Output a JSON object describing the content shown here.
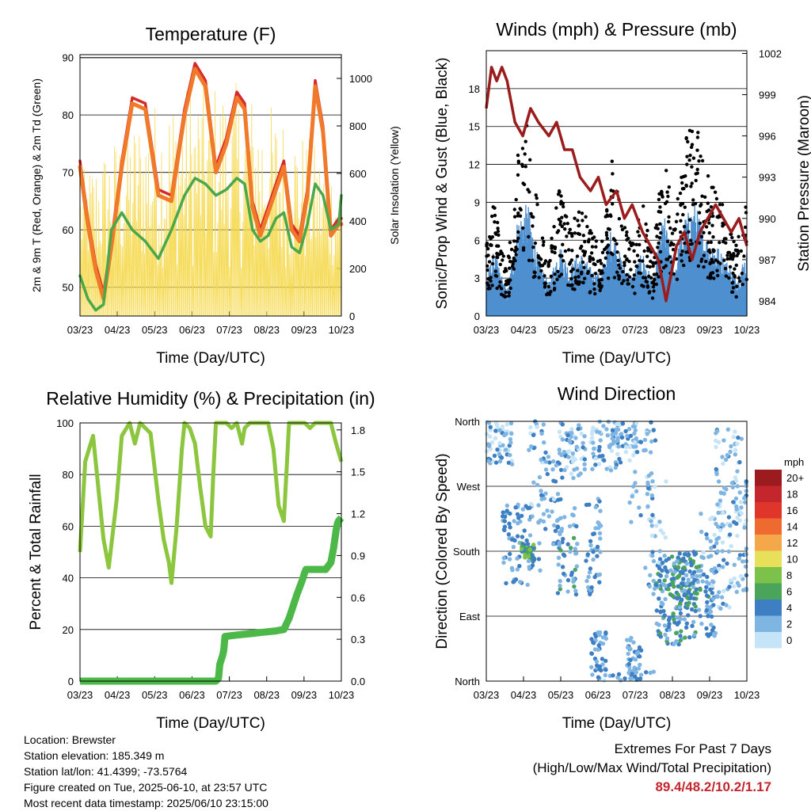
{
  "colors": {
    "temp2m": "#d42a2a",
    "temp9m": "#f07a2a",
    "dewpoint": "#4aa84a",
    "solar": "#f5d84a",
    "wind": "#4d8fcf",
    "gust": "#000000",
    "pressure": "#9b1c1c",
    "rh": "#8cc63e",
    "rain": "#4cb848"
  },
  "chart_data": [
    {
      "id": "temperature",
      "type": "line",
      "title": "Temperature (F)",
      "xlabel": "Time (Day/UTC)",
      "ylabel": "2m & 9m T (Red, Orange) & 2m Td (Green)",
      "y2label": "Solar Insolation (Yellow)",
      "xticks": [
        "03/23",
        "04/23",
        "05/23",
        "06/23",
        "07/23",
        "08/23",
        "09/23",
        "10/23"
      ],
      "yticks": [
        "50",
        "60",
        "70",
        "80",
        "90"
      ],
      "y2ticks": [
        "0",
        "200",
        "400",
        "600",
        "800",
        "1000"
      ],
      "ylim": [
        45,
        90.5
      ],
      "y2lim": [
        0,
        1100
      ],
      "grid": true,
      "series": [
        {
          "key": "temp2m",
          "x": [
            0,
            0.3,
            0.6,
            0.9,
            1.2,
            1.6,
            2,
            2.5,
            3,
            3.5,
            4,
            4.4,
            4.8,
            5.2,
            5.6,
            6,
            6.3,
            6.6,
            6.9,
            7.2,
            7.5,
            7.8,
            8.1,
            8.4,
            8.7,
            9,
            9.3,
            9.6,
            9.9,
            10
          ],
          "y": [
            72,
            62,
            54,
            49,
            58,
            72,
            83,
            82,
            67,
            66,
            81,
            89,
            86,
            71,
            76,
            84,
            82,
            65,
            60,
            64,
            68,
            72,
            61,
            59,
            67,
            86,
            78,
            60,
            62,
            62
          ]
        },
        {
          "key": "temp9m",
          "x": [
            0,
            0.3,
            0.6,
            0.9,
            1.2,
            1.6,
            2,
            2.5,
            3,
            3.5,
            4,
            4.4,
            4.8,
            5.2,
            5.6,
            6,
            6.3,
            6.6,
            6.9,
            7.2,
            7.5,
            7.8,
            8.1,
            8.4,
            8.7,
            9,
            9.3,
            9.6,
            9.9,
            10
          ],
          "y": [
            71,
            61,
            53,
            48,
            57,
            71,
            82,
            81,
            66,
            65,
            80,
            88,
            85,
            70,
            75,
            83,
            81,
            64,
            59,
            63,
            67,
            71,
            60,
            58,
            66,
            85,
            77,
            59,
            61,
            61
          ]
        },
        {
          "key": "dewpoint",
          "x": [
            0,
            0.3,
            0.6,
            0.9,
            1.2,
            1.6,
            2,
            2.5,
            3,
            3.5,
            4,
            4.4,
            4.8,
            5.2,
            5.6,
            6,
            6.3,
            6.6,
            6.9,
            7.2,
            7.5,
            7.8,
            8.1,
            8.4,
            8.7,
            9,
            9.3,
            9.6,
            9.9,
            10
          ],
          "y": [
            52,
            48,
            46,
            47,
            60,
            63,
            60,
            58,
            55,
            60,
            66,
            69,
            68,
            66,
            67,
            69,
            68,
            60,
            58,
            59,
            62,
            63,
            57,
            56,
            61,
            68,
            66,
            60,
            61,
            66
          ]
        }
      ]
    },
    {
      "id": "winds",
      "type": "scatter",
      "title": "Winds (mph) & Pressure (mb)",
      "xlabel": "Time (Day/UTC)",
      "ylabel": "Sonic/Prop Wind & Gust (Blue, Black)",
      "y2label": "Station Pressure (Maroon)",
      "xticks": [
        "03/23",
        "04/23",
        "05/23",
        "06/23",
        "07/23",
        "08/23",
        "09/23",
        "10/23"
      ],
      "yticks": [
        "0",
        "3",
        "6",
        "9",
        "12",
        "15",
        "18"
      ],
      "y2ticks": [
        "984",
        "987",
        "990",
        "993",
        "996",
        "999",
        "1002"
      ],
      "ylim": [
        0,
        21
      ],
      "y2lim": [
        982.9,
        1002.2
      ],
      "grid": true,
      "series": [
        {
          "key": "pressure",
          "x": [
            0,
            0.2,
            0.4,
            0.6,
            0.8,
            1.1,
            1.4,
            1.7,
            2,
            2.4,
            2.7,
            3,
            3.3,
            3.6,
            4,
            4.3,
            4.6,
            5,
            5.3,
            5.6,
            6,
            6.3,
            6.6,
            6.9,
            7.1,
            7.3,
            7.6,
            7.9,
            8.2,
            8.5,
            8.8,
            9.1,
            9.4,
            9.7,
            10
          ],
          "y": [
            998,
            1001,
            1000,
            1001,
            1000,
            997,
            996,
            998,
            997,
            996,
            997,
            995,
            995,
            993,
            992,
            993,
            991,
            992,
            990,
            991,
            989,
            988,
            987,
            984,
            986,
            988,
            989,
            987,
            989,
            990,
            991,
            990,
            989,
            990,
            988
          ]
        }
      ]
    },
    {
      "id": "humidity",
      "type": "line",
      "title": "Relative Humidity (%) & Precipitation (in)",
      "xlabel": "Time (Day/UTC)",
      "ylabel": "Percent & Total Rainfall",
      "xticks": [
        "03/23",
        "04/23",
        "05/23",
        "06/23",
        "07/23",
        "08/23",
        "09/23",
        "10/23"
      ],
      "yticks": [
        "0",
        "20",
        "40",
        "60",
        "80",
        "100"
      ],
      "y2ticks": [
        "0.0",
        "0.3",
        "0.6",
        "0.9",
        "1.2",
        "1.5",
        "1.8"
      ],
      "ylim": [
        0,
        100
      ],
      "y2lim": [
        0,
        1.85
      ],
      "grid": true,
      "series": [
        {
          "key": "rh",
          "x": [
            0,
            0.2,
            0.5,
            0.7,
            0.9,
            1.1,
            1.4,
            1.6,
            1.9,
            2.1,
            2.3,
            2.5,
            2.7,
            3,
            3.2,
            3.4,
            3.5,
            3.7,
            3.9,
            4,
            4.2,
            4.4,
            4.6,
            4.8,
            5,
            5.1,
            5.2,
            5.4,
            5.6,
            5.8,
            6,
            6.2,
            6.3,
            6.5,
            6.8,
            7,
            7.2,
            7.4,
            7.6,
            7.8,
            8,
            8.2,
            8.4,
            8.6,
            8.8,
            9,
            9.2,
            9.4,
            9.6,
            9.8,
            10
          ],
          "y": [
            50,
            85,
            95,
            75,
            55,
            44,
            70,
            95,
            100,
            92,
            100,
            98,
            96,
            70,
            55,
            46,
            38,
            60,
            90,
            100,
            98,
            92,
            75,
            60,
            56,
            80,
            100,
            100,
            100,
            98,
            100,
            92,
            98,
            100,
            100,
            100,
            100,
            90,
            68,
            62,
            100,
            100,
            100,
            100,
            98,
            100,
            100,
            100,
            100,
            92,
            85
          ]
        },
        {
          "key": "rain",
          "x": [
            0,
            5.2,
            5.3,
            5.35,
            5.45,
            5.5,
            5.55,
            6,
            6.5,
            7,
            7.5,
            7.8,
            8,
            8.3,
            8.5,
            8.6,
            8.65,
            8.7,
            9,
            9.4,
            9.6,
            9.7,
            9.8,
            9.85,
            9.9,
            10
          ],
          "y": [
            0,
            0,
            0.02,
            0.12,
            0.18,
            0.22,
            0.32,
            0.33,
            0.34,
            0.35,
            0.36,
            0.37,
            0.45,
            0.62,
            0.72,
            0.78,
            0.8,
            0.8,
            0.8,
            0.8,
            0.85,
            0.95,
            1.08,
            1.13,
            1.15,
            1.17
          ]
        }
      ]
    },
    {
      "id": "direction",
      "type": "scatter",
      "title": "Wind Direction",
      "xlabel": "Time (Day/UTC)",
      "ylabel": "Direction (Colored By Speed)",
      "xticks": [
        "03/23",
        "04/23",
        "05/23",
        "06/23",
        "07/23",
        "08/23",
        "09/23",
        "10/23"
      ],
      "yticks": [
        "North",
        "East",
        "South",
        "West",
        "North"
      ],
      "ylim": [
        0,
        360
      ],
      "grid": true,
      "legend": {
        "title": "mph",
        "labels": [
          "20+",
          "18",
          "16",
          "14",
          "12",
          "10",
          "8",
          "6",
          "4",
          "2",
          "0"
        ],
        "colors": [
          "#9b1b1e",
          "#c4262e",
          "#e0352b",
          "#ef6a2f",
          "#f5a84a",
          "#e8df5a",
          "#7cc24a",
          "#4aa45a",
          "#3d7fc2",
          "#7fb5e3",
          "#c5e4f7"
        ]
      }
    }
  ],
  "info": {
    "location": "Location: Brewster",
    "elevation": "Station elevation: 185.349 m",
    "latlon": "Station lat/lon: 41.4399; -73.5764",
    "created": "Figure created on Tue, 2025-06-10, at 23:57 UTC",
    "recent": "Most recent data timestamp: 2025/06/10 23:15:00"
  },
  "extremes": {
    "title": "Extremes For Past 7 Days",
    "subtitle": "(High/Low/Max Wind/Total Precipitation)",
    "values": "89.4/48.2/10.2/1.17"
  }
}
